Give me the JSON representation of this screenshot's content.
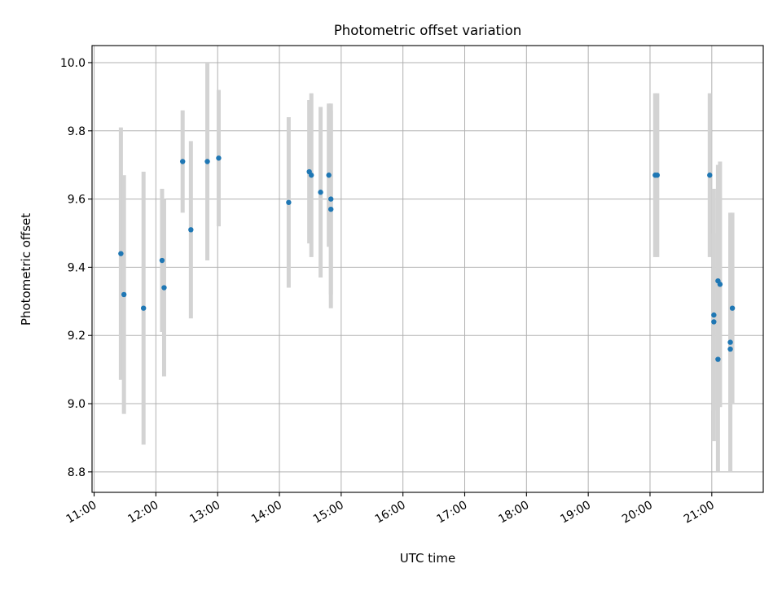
{
  "chart_data": {
    "type": "scatter",
    "title": "Photometric offset variation",
    "xlabel": "UTC time",
    "ylabel": "Photometric offset",
    "x_ticks": [
      "11:00",
      "12:00",
      "13:00",
      "14:00",
      "15:00",
      "16:00",
      "17:00",
      "18:00",
      "19:00",
      "20:00",
      "21:00"
    ],
    "y_ticks": [
      "8.8",
      "9.0",
      "9.2",
      "9.4",
      "9.6",
      "9.8",
      "10.0"
    ],
    "xlim": [
      "10:58",
      "21:50"
    ],
    "ylim": [
      8.74,
      10.05
    ],
    "grid": true,
    "colors": {
      "marker": "#1f77b4",
      "errorbar": "#d3d3d3",
      "grid": "#b0b0b0"
    },
    "points": [
      {
        "x": "11:26",
        "y": 9.44,
        "err": 0.37
      },
      {
        "x": "11:29",
        "y": 9.32,
        "err": 0.35
      },
      {
        "x": "11:48",
        "y": 9.28,
        "err": 0.4
      },
      {
        "x": "12:06",
        "y": 9.42,
        "err": 0.21
      },
      {
        "x": "12:08",
        "y": 9.34,
        "err": 0.26
      },
      {
        "x": "12:26",
        "y": 9.71,
        "err": 0.15
      },
      {
        "x": "12:34",
        "y": 9.51,
        "err": 0.26
      },
      {
        "x": "12:50",
        "y": 9.71,
        "err": 0.29
      },
      {
        "x": "13:01",
        "y": 9.72,
        "err": 0.2
      },
      {
        "x": "14:09",
        "y": 9.59,
        "err": 0.25
      },
      {
        "x": "14:29",
        "y": 9.68,
        "err": 0.21
      },
      {
        "x": "14:31",
        "y": 9.67,
        "err": 0.24
      },
      {
        "x": "14:40",
        "y": 9.62,
        "err": 0.25
      },
      {
        "x": "14:48",
        "y": 9.67,
        "err": 0.21
      },
      {
        "x": "14:50",
        "y": 9.6,
        "err": 0.28
      },
      {
        "x": "14:50",
        "y": 9.57,
        "err": 0.29
      },
      {
        "x": "20:05",
        "y": 9.67,
        "err": 0.24
      },
      {
        "x": "20:07",
        "y": 9.67,
        "err": 0.24
      },
      {
        "x": "20:58",
        "y": 9.67,
        "err": 0.24
      },
      {
        "x": "21:02",
        "y": 9.26,
        "err": 0.37
      },
      {
        "x": "21:02",
        "y": 9.24,
        "err": 0.26
      },
      {
        "x": "21:06",
        "y": 9.36,
        "err": 0.34
      },
      {
        "x": "21:06",
        "y": 9.13,
        "err": 0.33
      },
      {
        "x": "21:08",
        "y": 9.35,
        "err": 0.36
      },
      {
        "x": "21:18",
        "y": 9.18,
        "err": 0.38
      },
      {
        "x": "21:18",
        "y": 9.16,
        "err": 0.36
      },
      {
        "x": "21:20",
        "y": 9.28,
        "err": 0.28
      }
    ]
  }
}
